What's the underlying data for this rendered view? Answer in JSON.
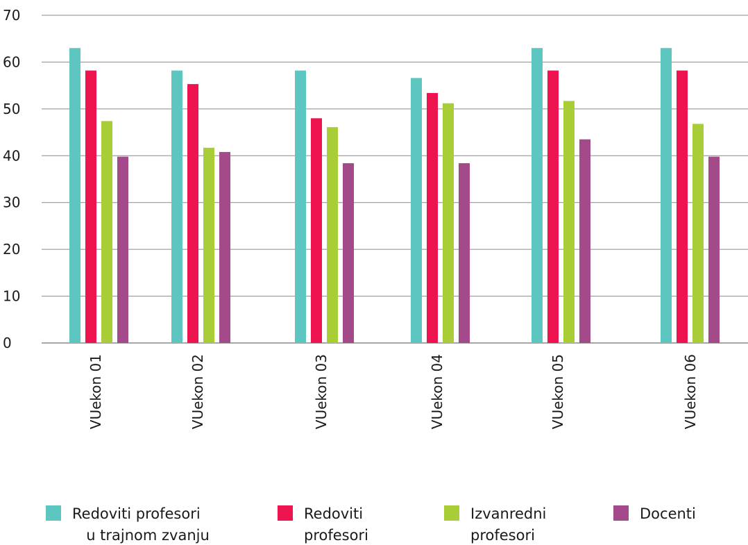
{
  "chart_data": {
    "type": "bar",
    "title": "",
    "xlabel": "",
    "ylabel": "",
    "ylim": [
      0,
      70
    ],
    "yticks": [
      0,
      10,
      20,
      30,
      40,
      50,
      60,
      70
    ],
    "grid": true,
    "legend_position": "bottom",
    "categories": [
      "VUekon 01",
      "VUekon 02",
      "VUekon 03",
      "VUekon 04",
      "VUekon 05",
      "VUekon 06"
    ],
    "series": [
      {
        "name": "Redoviti profesori u trajnom zvanju",
        "legend_lines": [
          "Redoviti profesori",
          "u trajnom zvanju"
        ],
        "color": "#5ec6c1",
        "values": [
          63,
          58.2,
          58.2,
          56.6,
          63,
          63
        ]
      },
      {
        "name": "Redoviti profesori",
        "legend_lines": [
          "Redoviti",
          "profesori"
        ],
        "color": "#ee1450",
        "values": [
          58.2,
          55.3,
          48,
          53.4,
          58.2,
          58.2
        ]
      },
      {
        "name": "Izvanredni profesori",
        "legend_lines": [
          "Izvanredni",
          "profesori"
        ],
        "color": "#a9cd36",
        "values": [
          47.4,
          41.7,
          46.1,
          51.2,
          51.7,
          46.8
        ]
      },
      {
        "name": "Docenti",
        "legend_lines": [
          "Docenti"
        ],
        "color": "#a44a8b",
        "values": [
          39.8,
          40.8,
          38.4,
          38.4,
          43.5,
          39.8
        ]
      }
    ]
  }
}
